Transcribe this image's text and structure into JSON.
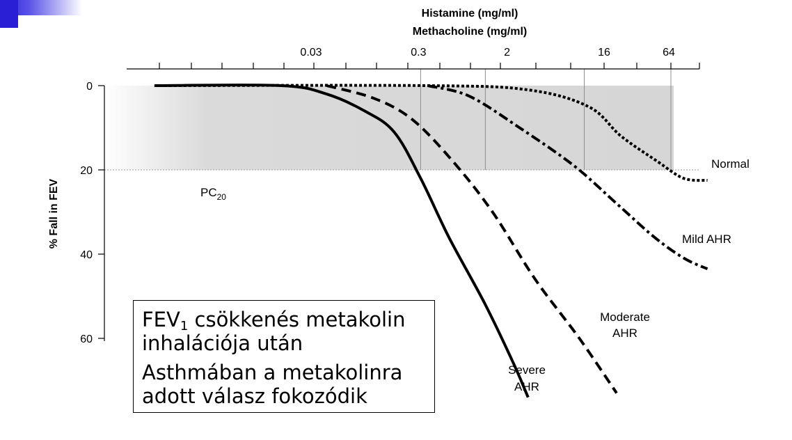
{
  "chart_data": {
    "type": "line",
    "title": "",
    "xlabel_line1": "Histamine (mg/ml)",
    "xlabel_line2": "Methacholine (mg/ml)",
    "ylabel": "% Fall in FEV",
    "x_scale": "log",
    "x_tick_labels": [
      "0.03",
      "0.3",
      "2",
      "16",
      "64"
    ],
    "x_tick_label_values": [
      0.03,
      0.3,
      2,
      16,
      64
    ],
    "y_ticks": [
      0,
      20,
      40,
      60
    ],
    "y_tick_labels": [
      "0",
      "20",
      "40",
      "60"
    ],
    "ylim": [
      0,
      75
    ],
    "y_inverted": true,
    "threshold": {
      "label_main": "PC",
      "label_sub": "20",
      "y": 20
    },
    "series": [
      {
        "name": "Normal",
        "style": "dotted",
        "points": [
          [
            0.001,
            0
          ],
          [
            0.35,
            0
          ],
          [
            3,
            1
          ],
          [
            11,
            5
          ],
          [
            22,
            12
          ],
          [
            48,
            18
          ],
          [
            84,
            22
          ],
          [
            140,
            22.5
          ]
        ]
      },
      {
        "name": "Mild AHR",
        "style": "dashdot",
        "points": [
          [
            0.35,
            0
          ],
          [
            0.85,
            2.5
          ],
          [
            2.5,
            10
          ],
          [
            8,
            19
          ],
          [
            20,
            28
          ],
          [
            45,
            36
          ],
          [
            85,
            41
          ],
          [
            140,
            43.5
          ]
        ]
      },
      {
        "name": "Moderate AHR",
        "style": "dashed",
        "points": [
          [
            0.04,
            0
          ],
          [
            0.11,
            3
          ],
          [
            0.25,
            8
          ],
          [
            0.6,
            18
          ],
          [
            1.4,
            30
          ],
          [
            3.5,
            46
          ],
          [
            9,
            60
          ],
          [
            20,
            73
          ]
        ]
      },
      {
        "name": "Severe AHR",
        "style": "solid",
        "points": [
          [
            0.001,
            0
          ],
          [
            0.015,
            0
          ],
          [
            0.04,
            2
          ],
          [
            0.09,
            6
          ],
          [
            0.17,
            11
          ],
          [
            0.3,
            22
          ],
          [
            0.55,
            36
          ],
          [
            1.2,
            52
          ],
          [
            2.2,
            66
          ],
          [
            3,
            74
          ]
        ]
      }
    ],
    "series_labels": {
      "normal": "Normal",
      "mild": "Mild AHR",
      "moderate_line1": "Moderate",
      "moderate_line2": "AHR",
      "severe_line1": "Severe",
      "severe_line2": "AHR"
    }
  },
  "note": {
    "line1_pre": "FEV",
    "line1_sub": "1",
    "line1_post": " csökkenés metakolin",
    "line2": "inhalációja után",
    "line3": "Asthmában a metakolinra",
    "line4": "adott válasz fokozódik"
  }
}
